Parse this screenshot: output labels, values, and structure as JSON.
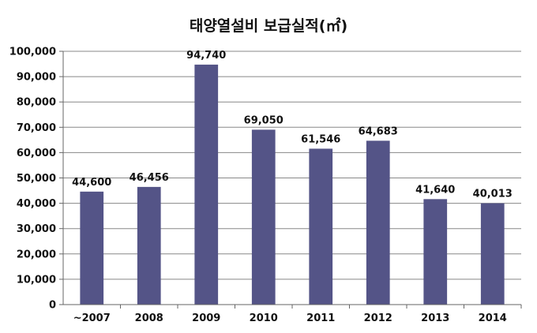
{
  "chart_data": {
    "type": "bar",
    "title": "태양열설비 보급실적(㎡)",
    "xlabel": "",
    "ylabel": "",
    "categories": [
      "~2007",
      "2008",
      "2009",
      "2010",
      "2011",
      "2012",
      "2013",
      "2014"
    ],
    "values": [
      44600,
      46456,
      94740,
      69050,
      61546,
      64683,
      41640,
      40013
    ],
    "data_labels": [
      "44,600",
      "46,456",
      "94,740",
      "69,050",
      "61,546",
      "64,683",
      "41,640",
      "40,013"
    ],
    "ylim": [
      0,
      100000
    ],
    "y_ticks": [
      0,
      10000,
      20000,
      30000,
      40000,
      50000,
      60000,
      70000,
      80000,
      90000,
      100000
    ],
    "y_tick_labels": [
      "0",
      "10,000",
      "20,000",
      "30,000",
      "40,000",
      "50,000",
      "60,000",
      "70,000",
      "80,000",
      "90,000",
      "100,000"
    ],
    "grid": true,
    "legend": "none",
    "colors": {
      "bar": "#545487",
      "grid": "#888888",
      "axis": "#666666",
      "text": "#111111"
    }
  }
}
